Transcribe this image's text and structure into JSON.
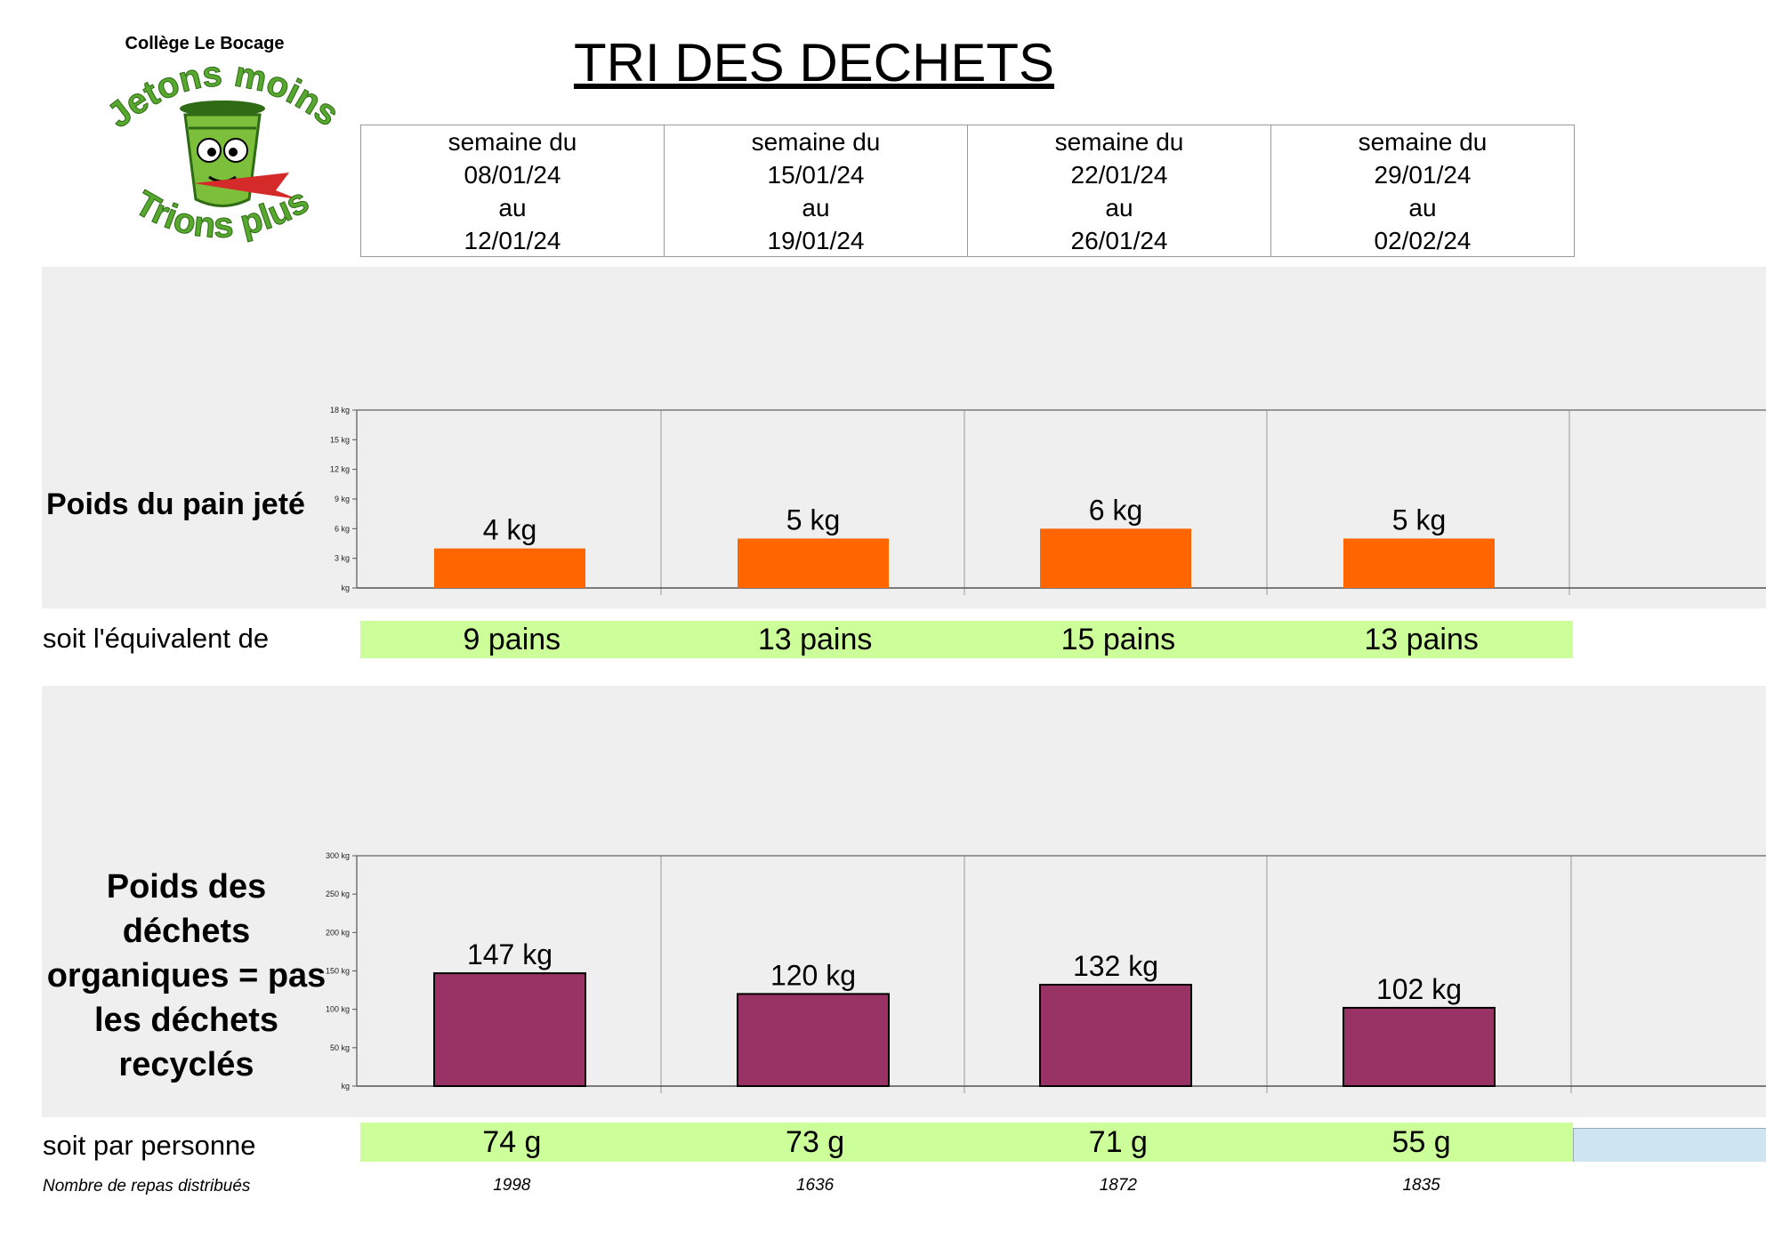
{
  "header": {
    "school": "Collège Le Bocage",
    "title": "TRI DES DECHETS",
    "logo_top_text": "Jetons moins",
    "logo_bottom_text": "Trions plus"
  },
  "weeks": [
    {
      "line1": "semaine du",
      "start": "08/01/24",
      "line3": "au",
      "end": "12/01/24"
    },
    {
      "line1": "semaine du",
      "start": "15/01/24",
      "line3": "au",
      "end": "19/01/24"
    },
    {
      "line1": "semaine du",
      "start": "22/01/24",
      "line3": "au",
      "end": "26/01/24"
    },
    {
      "line1": "semaine du",
      "start": "29/01/24",
      "line3": "au",
      "end": "02/02/24"
    }
  ],
  "labels": {
    "bread": "Poids du pain jeté",
    "organic": "Poids des déchets organiques = pas les déchets recyclés",
    "equivalent": "soit l'équivalent de",
    "per_person": "soit par personne",
    "meals": "Nombre de repas distribués"
  },
  "equivalents": [
    "9 pains",
    "13 pains",
    "15 pains",
    "13 pains"
  ],
  "per_person": [
    "74 g",
    "73 g",
    "71 g",
    "55 g"
  ],
  "meals": [
    "1998",
    "1636",
    "1872",
    "1835"
  ],
  "colors": {
    "bread_bar": "#ff6600",
    "organic_bar": "#993366",
    "band": "#ccff99"
  },
  "chart_data": [
    {
      "type": "bar",
      "title": "Poids du pain jeté",
      "categories": [
        "",
        "",
        "",
        ""
      ],
      "values": [
        4,
        5,
        6,
        5
      ],
      "data_labels": [
        "4 kg",
        "5 kg",
        "6 kg",
        "5 kg"
      ],
      "ylim": [
        0,
        18
      ],
      "yticks": [
        0,
        3,
        6,
        9,
        12,
        15,
        18
      ],
      "ytick_labels": [
        "kg",
        "3 kg",
        "6 kg",
        "9 kg",
        "12 kg",
        "15 kg",
        "18 kg"
      ],
      "grid": "vertical"
    },
    {
      "type": "bar",
      "title": "Poids des déchets organiques = pas les déchets recyclés",
      "categories": [
        "",
        "",
        "",
        ""
      ],
      "values": [
        147,
        120,
        132,
        102
      ],
      "data_labels": [
        "147 kg",
        "120 kg",
        "132 kg",
        "102 kg"
      ],
      "ylim": [
        0,
        300
      ],
      "yticks": [
        0,
        50,
        100,
        150,
        200,
        250,
        300
      ],
      "ytick_labels": [
        "kg",
        "50 kg",
        "100 kg",
        "150 kg",
        "200 kg",
        "250 kg",
        "300 kg"
      ],
      "grid": "vertical"
    }
  ]
}
